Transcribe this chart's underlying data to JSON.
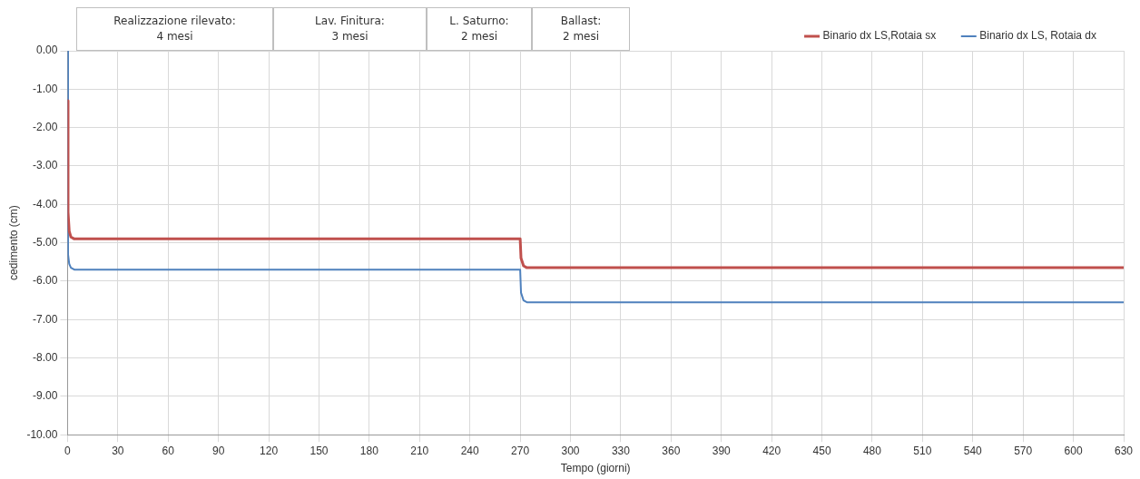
{
  "chart_data": {
    "type": "line",
    "xlabel": "Tempo (giorni)",
    "ylabel": "cedimento (cm)",
    "annotations": [
      "Realizzazione rilevato:\n4 mesi",
      "Lav. Finitura:\n3 mesi",
      "L. Saturno:\n2 mesi",
      "Ballast:\n2 mesi"
    ],
    "series": [
      {
        "name": "Binario dx LS,Rotaia sx",
        "color": "#c0504d",
        "x": [
          0,
          0.3,
          1,
          2,
          4,
          270,
          270.5,
          272,
          274,
          630
        ],
        "values": [
          -1.3,
          -4.2,
          -4.7,
          -4.85,
          -4.9,
          -4.9,
          -5.4,
          -5.6,
          -5.65,
          -5.65
        ]
      },
      {
        "name": "Binario dx LS, Rotaia dx",
        "color": "#4f81bd",
        "x": [
          0,
          0.3,
          1,
          2,
          4,
          270,
          270.5,
          272,
          274,
          630
        ],
        "values": [
          0,
          -5.3,
          -5.55,
          -5.65,
          -5.7,
          -5.7,
          -6.3,
          -6.5,
          -6.55,
          -6.55
        ]
      }
    ],
    "xlim": [
      0,
      630
    ],
    "xticks": [
      0,
      30,
      60,
      90,
      120,
      150,
      180,
      210,
      240,
      270,
      300,
      330,
      360,
      390,
      420,
      450,
      480,
      510,
      540,
      570,
      600,
      630
    ],
    "ylim": [
      -10,
      0
    ],
    "yticks": [
      {
        "value": 0,
        "label": "0.00"
      },
      {
        "value": -1,
        "label": "-1.00"
      },
      {
        "value": -2,
        "label": "-2.00"
      },
      {
        "value": -3,
        "label": "-3.00"
      },
      {
        "value": -4,
        "label": "-4.00"
      },
      {
        "value": -5,
        "label": "-5.00"
      },
      {
        "value": -6,
        "label": "-6.00"
      },
      {
        "value": -7,
        "label": "-7.00"
      },
      {
        "value": -8,
        "label": "-8.00"
      },
      {
        "value": -9,
        "label": "-9.00"
      },
      {
        "value": -10,
        "label": "-10.00"
      }
    ],
    "grid": true,
    "legend": "top right",
    "marker": "none",
    "line_style": "solid"
  }
}
